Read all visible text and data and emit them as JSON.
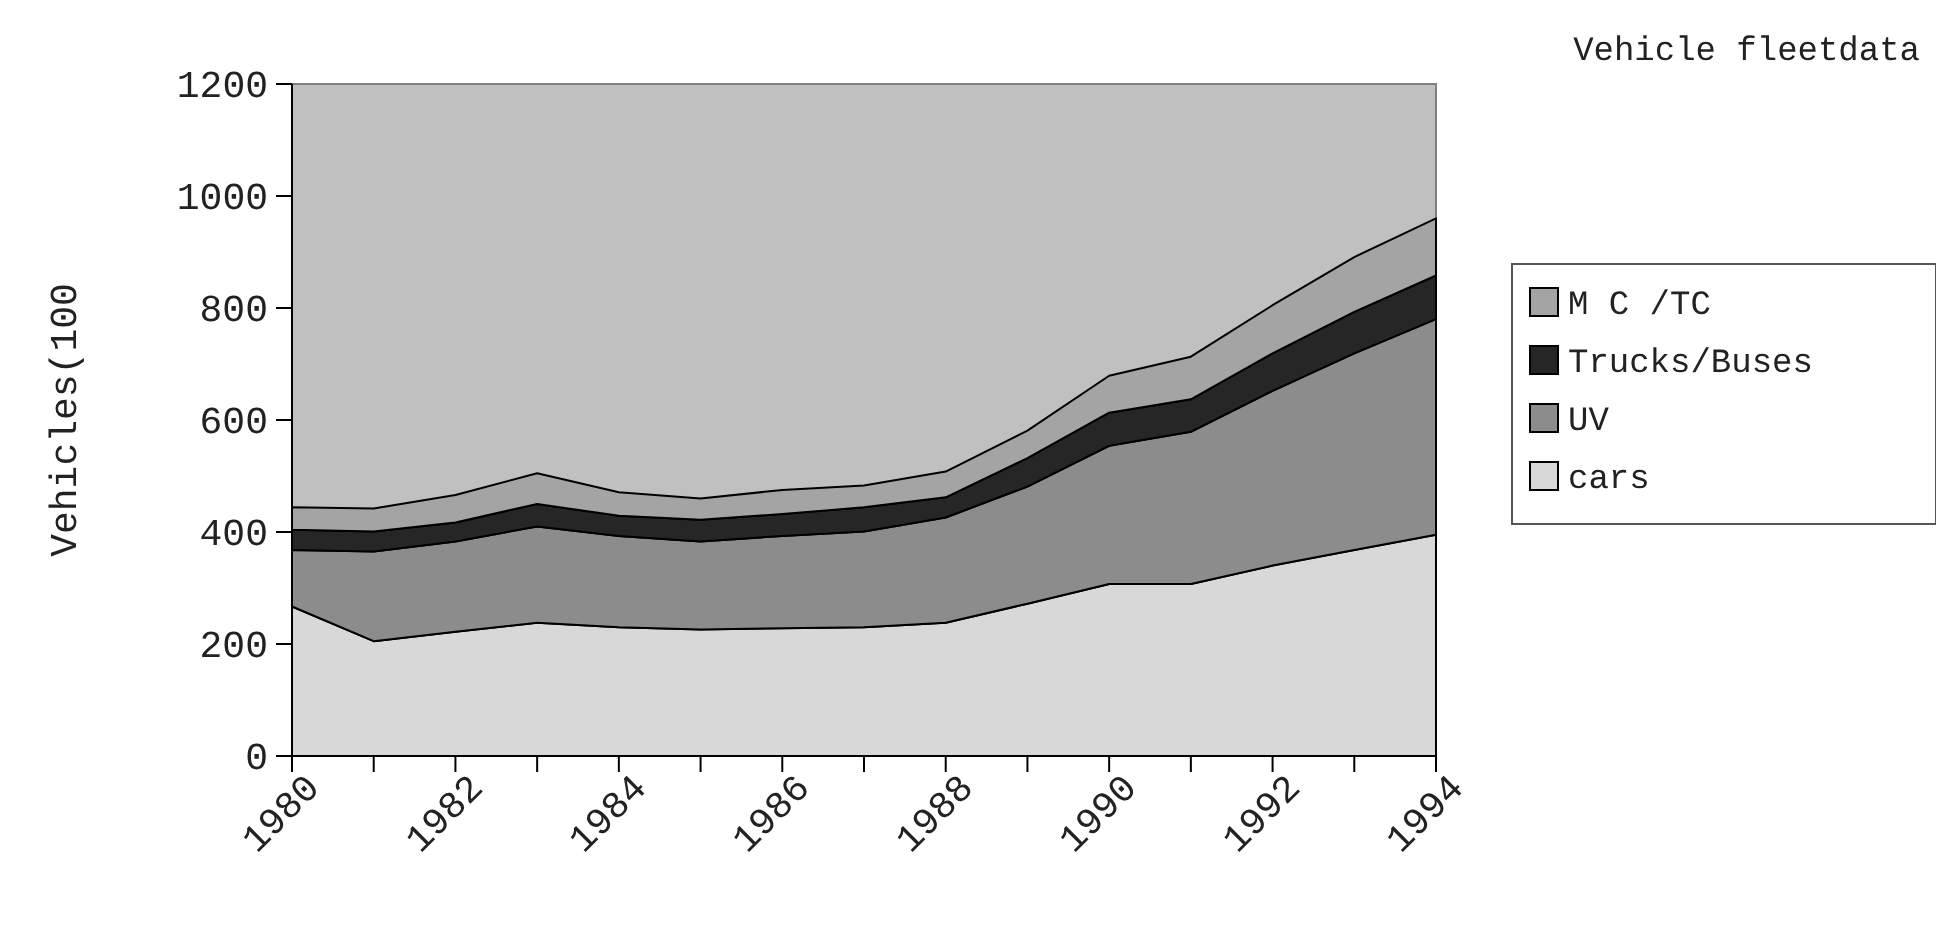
{
  "chart_data": {
    "type": "area",
    "stacked": true,
    "title": "Vehicle fleetdata",
    "ylabel": "Vehicles(100",
    "x": [
      1980,
      1981,
      1982,
      1983,
      1984,
      1985,
      1986,
      1987,
      1988,
      1989,
      1990,
      1991,
      1992,
      1993,
      1994
    ],
    "xlim": [
      1980,
      1994
    ],
    "xticks": [
      1980,
      1982,
      1984,
      1986,
      1988,
      1990,
      1992,
      1994
    ],
    "ylim": [
      0,
      1200
    ],
    "yticks": [
      0,
      200,
      400,
      600,
      800,
      1000,
      1200
    ],
    "legend": "right",
    "grid": false,
    "series": [
      {
        "name": "cars",
        "color": "#d8d8d8",
        "values": [
          267,
          205,
          222,
          238,
          230,
          226,
          228,
          230,
          238,
          272,
          307,
          307,
          340,
          368,
          395
        ]
      },
      {
        "name": "UV",
        "color": "#8c8c8c",
        "values": [
          101,
          160,
          161,
          172,
          163,
          157,
          165,
          171,
          188,
          209,
          247,
          272,
          312,
          351,
          385
        ]
      },
      {
        "name": "Trucks/Buses",
        "color": "#262626",
        "values": [
          36,
          36,
          34,
          40,
          36,
          39,
          39,
          43,
          36,
          51,
          59,
          58,
          67,
          74,
          78
        ]
      },
      {
        "name": "M C /TC",
        "color": "#a4a4a4",
        "values": [
          40,
          41,
          49,
          55,
          42,
          38,
          43,
          39,
          46,
          49,
          66,
          76,
          86,
          98,
          102
        ]
      }
    ]
  }
}
